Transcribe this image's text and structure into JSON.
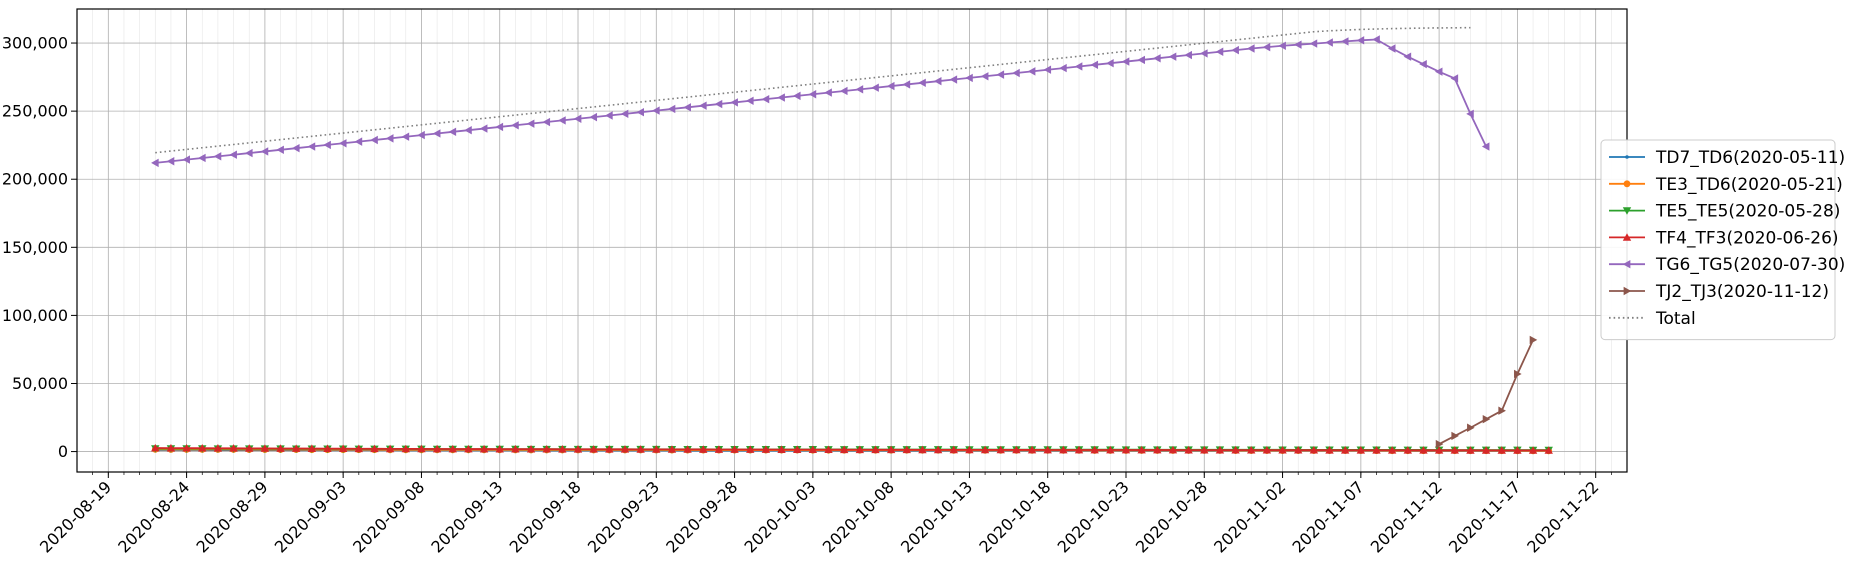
{
  "chart_data": {
    "type": "line",
    "title": "",
    "xlabel": "",
    "ylabel": "",
    "x_start": "2020-08-22",
    "x_end": "2020-11-19",
    "xlim": [
      "2020-08-17",
      "2020-11-24"
    ],
    "ylim": [
      -15000,
      325000
    ],
    "x_ticks": [
      "2020-08-19",
      "2020-08-24",
      "2020-08-29",
      "2020-09-03",
      "2020-09-08",
      "2020-09-13",
      "2020-09-18",
      "2020-09-23",
      "2020-09-28",
      "2020-10-03",
      "2020-10-08",
      "2020-10-13",
      "2020-10-18",
      "2020-10-23",
      "2020-10-28",
      "2020-11-02",
      "2020-11-07",
      "2020-11-12",
      "2020-11-17",
      "2020-11-22"
    ],
    "y_ticks": [
      0,
      50000,
      100000,
      150000,
      200000,
      250000,
      300000
    ],
    "y_tick_labels": [
      "0",
      "50,000",
      "100,000",
      "150,000",
      "200,000",
      "250,000",
      "300,000"
    ],
    "grid": true,
    "legend_position": "right",
    "series": [
      {
        "name": "TD7_TD6(2020-05-11)",
        "color": "#1f77b4",
        "marker": "point",
        "style": "solid",
        "values": [
          1200,
          1180,
          1160,
          1140,
          1120,
          1100,
          1080,
          1060,
          1040,
          1020,
          1000,
          990,
          980,
          970,
          960,
          950,
          940,
          930,
          920,
          910,
          900,
          890,
          880,
          870,
          860,
          850,
          840,
          830,
          820,
          810,
          800,
          790,
          780,
          770,
          760,
          750,
          740,
          730,
          720,
          710,
          700,
          690,
          680,
          670,
          660,
          660,
          650,
          650,
          640,
          640,
          630,
          630,
          620,
          620,
          610,
          610,
          600,
          600,
          590,
          590,
          580,
          580,
          570,
          570,
          560,
          560,
          550,
          550,
          540,
          540,
          530,
          530,
          520,
          520,
          510,
          510,
          500,
          500,
          490,
          490,
          480,
          480,
          470,
          470,
          460,
          460,
          450,
          450,
          440,
          440
        ]
      },
      {
        "name": "TE3_TD6(2020-05-21)",
        "color": "#ff7f0e",
        "marker": "circle",
        "style": "solid",
        "values": [
          1600,
          1580,
          1560,
          1540,
          1520,
          1500,
          1480,
          1460,
          1440,
          1420,
          1400,
          1380,
          1360,
          1340,
          1320,
          1300,
          1290,
          1280,
          1270,
          1260,
          1250,
          1240,
          1230,
          1220,
          1210,
          1200,
          1190,
          1180,
          1170,
          1160,
          1150,
          1140,
          1130,
          1120,
          1110,
          1100,
          1090,
          1080,
          1070,
          1060,
          1050,
          1040,
          1030,
          1020,
          1010,
          1000,
          990,
          980,
          970,
          960,
          950,
          940,
          930,
          920,
          910,
          900,
          890,
          880,
          870,
          860,
          850,
          840,
          830,
          820,
          810,
          800,
          790,
          780,
          770,
          760,
          750,
          740,
          730,
          720,
          710,
          700,
          690,
          680,
          670,
          660,
          650,
          640,
          630,
          620,
          610,
          600,
          590,
          580,
          570,
          560
        ]
      },
      {
        "name": "TE5_TE5(2020-05-28)",
        "color": "#2ca02c",
        "marker": "triangle-down",
        "style": "solid",
        "values": [
          2200,
          2180,
          2160,
          2140,
          2120,
          2100,
          2080,
          2060,
          2040,
          2020,
          2000,
          1980,
          1960,
          1940,
          1920,
          1900,
          1880,
          1860,
          1840,
          1820,
          1800,
          1790,
          1780,
          1770,
          1760,
          1750,
          1740,
          1730,
          1720,
          1710,
          1700,
          1690,
          1680,
          1670,
          1660,
          1650,
          1640,
          1630,
          1620,
          1610,
          1600,
          1590,
          1580,
          1570,
          1560,
          1550,
          1540,
          1530,
          1520,
          1510,
          1500,
          1490,
          1480,
          1470,
          1460,
          1450,
          1440,
          1430,
          1420,
          1410,
          1400,
          1390,
          1380,
          1370,
          1360,
          1350,
          1340,
          1330,
          1320,
          1310,
          1300,
          1290,
          1280,
          1270,
          1260,
          1250,
          1240,
          1230,
          1220,
          1210,
          1200,
          1190,
          1180,
          1170,
          1160,
          1150,
          1140,
          1130,
          1120,
          1110
        ]
      },
      {
        "name": "TF4_TF3(2020-06-26)",
        "color": "#d62728",
        "marker": "triangle-up",
        "style": "solid",
        "values": [
          2600,
          2560,
          2520,
          2480,
          2440,
          2400,
          2360,
          2320,
          2280,
          2240,
          2200,
          2160,
          2120,
          2080,
          2040,
          2000,
          1970,
          1940,
          1910,
          1880,
          1850,
          1830,
          1810,
          1790,
          1770,
          1750,
          1730,
          1710,
          1690,
          1670,
          1650,
          1630,
          1610,
          1590,
          1570,
          1550,
          1530,
          1510,
          1490,
          1470,
          1450,
          1430,
          1410,
          1390,
          1370,
          1350,
          1330,
          1310,
          1290,
          1270,
          1250,
          1240,
          1230,
          1220,
          1210,
          1200,
          1190,
          1180,
          1170,
          1160,
          1150,
          1140,
          1130,
          1120,
          1110,
          1100,
          1090,
          1080,
          1070,
          1060,
          1050,
          1040,
          1030,
          1020,
          1010,
          1000,
          990,
          980,
          970,
          960,
          950,
          940,
          930,
          920,
          910,
          900,
          890,
          880,
          870,
          860
        ]
      },
      {
        "name": "TG6_TG5(2020-07-30)",
        "color": "#9467bd",
        "marker": "triangle-left",
        "style": "solid",
        "values": [
          212000,
          213200,
          214400,
          215600,
          216800,
          218000,
          219200,
          220400,
          221600,
          222800,
          224000,
          225200,
          226400,
          227600,
          228800,
          230000,
          231200,
          232400,
          233600,
          234800,
          236000,
          237200,
          238400,
          239600,
          240800,
          242000,
          243200,
          244400,
          245600,
          246800,
          248000,
          249200,
          250400,
          251600,
          252800,
          254000,
          255200,
          256400,
          257600,
          258800,
          260000,
          261200,
          262400,
          263600,
          264800,
          266000,
          267200,
          268400,
          269600,
          270800,
          272000,
          273200,
          274400,
          275600,
          276800,
          278000,
          279200,
          280400,
          281600,
          282800,
          284000,
          285200,
          286400,
          287600,
          288800,
          290000,
          291200,
          292400,
          293600,
          294800,
          296000,
          297000,
          298000,
          298800,
          299600,
          300400,
          301200,
          302000,
          302600,
          296000,
          290000,
          284500,
          279000,
          274000,
          248000,
          224000
        ]
      },
      {
        "name": "TJ2_TJ3(2020-11-12)",
        "color": "#8c564b",
        "marker": "triangle-right",
        "style": "solid",
        "x_start": "2020-11-12",
        "values": [
          5500,
          11500,
          17500,
          23800,
          30000,
          57000,
          82000
        ]
      },
      {
        "name": "Total",
        "color": "#7f7f7f",
        "marker": "none",
        "style": "dotted",
        "values": [
          219500,
          220700,
          221900,
          223100,
          224300,
          225500,
          226700,
          227900,
          229100,
          230300,
          231500,
          232700,
          233900,
          235100,
          236300,
          237500,
          238700,
          239900,
          241100,
          242300,
          243500,
          244700,
          245900,
          247100,
          248300,
          249500,
          250700,
          251900,
          253100,
          254300,
          255500,
          256700,
          257900,
          259100,
          260300,
          261500,
          262700,
          263900,
          265100,
          266300,
          267500,
          268700,
          269900,
          271100,
          272300,
          273500,
          274700,
          275900,
          277100,
          278300,
          279500,
          280700,
          281900,
          283100,
          284300,
          285500,
          286700,
          287900,
          289100,
          290300,
          291500,
          292700,
          293900,
          295100,
          296300,
          297500,
          298700,
          299900,
          301100,
          302300,
          303500,
          304700,
          305900,
          307100,
          308300,
          309000,
          309500,
          310000,
          310300,
          310600,
          310800,
          311000,
          311100,
          311200,
          311300
        ]
      }
    ]
  }
}
